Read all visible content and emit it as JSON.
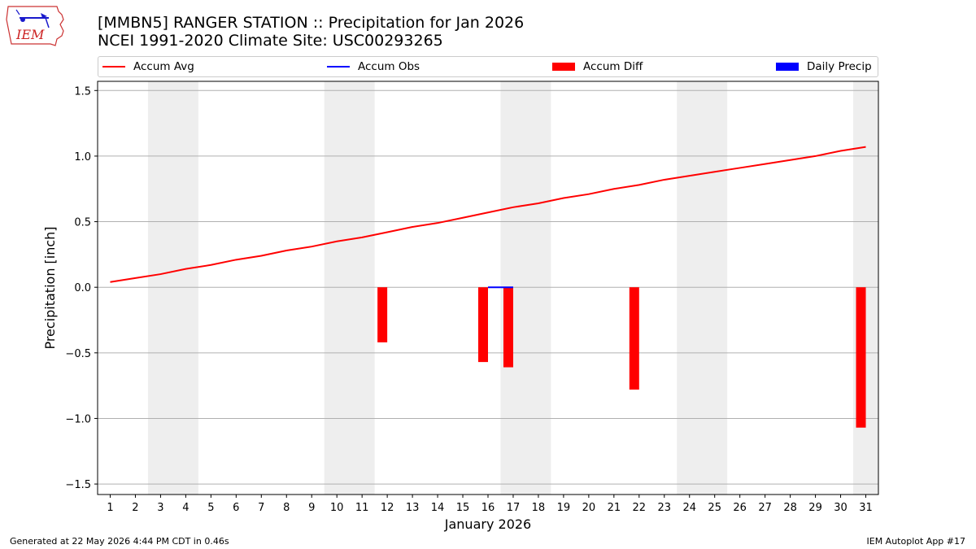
{
  "header": {
    "title_line1": "[MMBN5] RANGER STATION :: Precipitation for Jan 2026",
    "title_line2": "NCEI 1991-2020 Climate Site: USC00293265",
    "logo_text": "IEM"
  },
  "legend": {
    "items": [
      {
        "label": "Accum Avg",
        "kind": "line",
        "color": "#ff0000"
      },
      {
        "label": "Accum Obs",
        "kind": "line",
        "color": "#0000ff"
      },
      {
        "label": "Accum Diff",
        "kind": "box",
        "color": "#ff0000"
      },
      {
        "label": "Daily Precip",
        "kind": "box",
        "color": "#0000ff"
      }
    ]
  },
  "footer": {
    "left": "Generated at 22 May 2026 4:44 PM CDT in 0.46s",
    "right": "IEM Autoplot App #17"
  },
  "chart_data": {
    "type": "line",
    "xlabel": "January 2026",
    "ylabel": "Precipitation [inch]",
    "x": [
      1,
      2,
      3,
      4,
      5,
      6,
      7,
      8,
      9,
      10,
      11,
      12,
      13,
      14,
      15,
      16,
      17,
      18,
      19,
      20,
      21,
      22,
      23,
      24,
      25,
      26,
      27,
      28,
      29,
      30,
      31
    ],
    "xlim": [
      0.5,
      31.5
    ],
    "ylim": [
      -1.58,
      1.57
    ],
    "yticks": [
      -1.5,
      -1.0,
      -0.5,
      0.0,
      0.5,
      1.0,
      1.5
    ],
    "ytick_labels": [
      "−1.5",
      "−1.0",
      "−0.5",
      "0.0",
      "0.5",
      "1.0",
      "1.5"
    ],
    "weekend_shading": [
      [
        2.5,
        4.5
      ],
      [
        9.5,
        11.5
      ],
      [
        16.5,
        18.5
      ],
      [
        23.5,
        25.5
      ],
      [
        30.5,
        31.5
      ]
    ],
    "grid": "horizontal",
    "series": [
      {
        "name": "Accum Avg",
        "kind": "line",
        "color": "#ff0000",
        "values": [
          0.04,
          0.07,
          0.1,
          0.14,
          0.17,
          0.21,
          0.24,
          0.28,
          0.31,
          0.35,
          0.38,
          0.42,
          0.46,
          0.49,
          0.53,
          0.57,
          0.61,
          0.64,
          0.68,
          0.71,
          0.75,
          0.78,
          0.82,
          0.85,
          0.88,
          0.91,
          0.94,
          0.97,
          1.0,
          1.04,
          1.07
        ]
      },
      {
        "name": "Accum Obs",
        "kind": "line",
        "color": "#0000ff",
        "x": [
          16,
          17
        ],
        "values": [
          0.0,
          0.0
        ]
      },
      {
        "name": "Accum Diff",
        "kind": "bar",
        "color": "#ff0000",
        "points": [
          {
            "x": 12,
            "y": -0.42
          },
          {
            "x": 16,
            "y": -0.57
          },
          {
            "x": 17,
            "y": -0.61
          },
          {
            "x": 22,
            "y": -0.78
          },
          {
            "x": 31,
            "y": -1.07
          }
        ]
      },
      {
        "name": "Daily Precip",
        "kind": "bar",
        "color": "#0000ff",
        "points": []
      }
    ]
  }
}
